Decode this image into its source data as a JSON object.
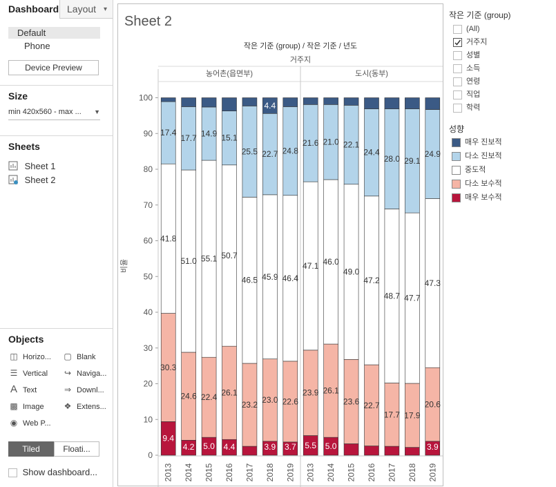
{
  "left_panel": {
    "tab_dashboard": "Dashboard",
    "tab_layout": "Layout",
    "device_default": "Default",
    "device_phone": "Phone",
    "device_preview_button": "Device Preview",
    "size_title": "Size",
    "size_value": "min 420x560 - max ...",
    "sheets_title": "Sheets",
    "sheets": [
      "Sheet 1",
      "Sheet 2"
    ],
    "objects_title": "Objects",
    "objects": [
      {
        "label": "Horizo...",
        "icon": "horizontal-icon"
      },
      {
        "label": "Blank",
        "icon": "blank-icon"
      },
      {
        "label": "Vertical",
        "icon": "vertical-icon"
      },
      {
        "label": "Naviga...",
        "icon": "navigation-icon"
      },
      {
        "label": "Text",
        "icon": "text-icon"
      },
      {
        "label": "Downl...",
        "icon": "download-icon"
      },
      {
        "label": "Image",
        "icon": "image-icon"
      },
      {
        "label": "Extens...",
        "icon": "extension-icon"
      },
      {
        "label": "Web P...",
        "icon": "web-page-icon"
      }
    ],
    "tiled": "Tiled",
    "floating": "Floati...",
    "show_dashboard": "Show dashboard..."
  },
  "sheet_title": "Sheet 2",
  "filter": {
    "title": "작은 기준 (group)",
    "items": [
      {
        "label": "(All)",
        "checked": false
      },
      {
        "label": "거주지",
        "checked": true
      },
      {
        "label": "성별",
        "checked": false
      },
      {
        "label": "소득",
        "checked": false
      },
      {
        "label": "연령",
        "checked": false
      },
      {
        "label": "직업",
        "checked": false
      },
      {
        "label": "학력",
        "checked": false
      }
    ]
  },
  "legend": {
    "title": "성향",
    "items": [
      {
        "label": "매우 진보적",
        "color": "#3b5a85"
      },
      {
        "label": "다소 진보적",
        "color": "#b3d4ea"
      },
      {
        "label": "중도적",
        "color": "#ffffff"
      },
      {
        "label": "다소 보수적",
        "color": "#f5b5a6"
      },
      {
        "label": "매우 보수적",
        "color": "#b8153c"
      }
    ]
  },
  "chart_data": {
    "type": "bar",
    "stacked": true,
    "header": "작은 기준 (group) / 작은 기준 / 년도",
    "group_header": "거주지",
    "ylabel": "비율",
    "ylim": [
      0,
      100
    ],
    "yticks": [
      0,
      10,
      20,
      30,
      40,
      50,
      60,
      70,
      80,
      90,
      100
    ],
    "panels": [
      {
        "name": "농어촌(읍면부)",
        "years": [
          "2013",
          "2014",
          "2015",
          "2016",
          "2017",
          "2018",
          "2019"
        ],
        "series": [
          {
            "name": "매우 보수적",
            "values": [
              9.4,
              4.2,
              5.0,
              4.4,
              2.5,
              3.9,
              3.7
            ],
            "labels": [
              "9.4",
              "4.2",
              "5.0",
              "4.4",
              "",
              "3.9",
              "3.7"
            ]
          },
          {
            "name": "다소 보수적",
            "values": [
              30.3,
              24.6,
              22.4,
              26.1,
              23.2,
              23.0,
              22.6
            ],
            "labels": [
              "30.3",
              "24.6",
              "22.4",
              "26.1",
              "23.2",
              "23.0",
              "22.6"
            ]
          },
          {
            "name": "중도적",
            "values": [
              41.8,
              51.0,
              55.1,
              50.7,
              46.5,
              45.9,
              46.4
            ],
            "labels": [
              "41.8",
              "51.0",
              "55.1",
              "50.7",
              "46.5",
              "45.9",
              "46.4"
            ]
          },
          {
            "name": "다소 진보적",
            "values": [
              17.4,
              17.7,
              14.9,
              15.1,
              25.5,
              22.7,
              24.8
            ],
            "labels": [
              "17.4",
              "17.7",
              "14.9",
              "15.1",
              "25.5",
              "22.7",
              "24.8"
            ]
          },
          {
            "name": "매우 진보적",
            "values": [
              1.1,
              2.5,
              2.6,
              3.7,
              2.3,
              4.4,
              2.5
            ],
            "labels": [
              "",
              "",
              "",
              "",
              "",
              "4.4",
              ""
            ]
          }
        ]
      },
      {
        "name": "도시(동부)",
        "years": [
          "2013",
          "2014",
          "2015",
          "2016",
          "2017",
          "2018",
          "2019"
        ],
        "series": [
          {
            "name": "매우 보수적",
            "values": [
              5.5,
              5.0,
              3.2,
              2.6,
              2.5,
              2.2,
              3.9
            ],
            "labels": [
              "5.5",
              "5.0",
              "",
              "",
              "",
              "",
              "3.9"
            ]
          },
          {
            "name": "다소 보수적",
            "values": [
              23.9,
              26.1,
              23.6,
              22.7,
              17.7,
              17.9,
              20.6
            ],
            "labels": [
              "23.9",
              "26.1",
              "23.6",
              "22.7",
              "17.7",
              "17.9",
              "20.6"
            ]
          },
          {
            "name": "중도적",
            "values": [
              47.1,
              46.0,
              49.0,
              47.2,
              48.7,
              47.7,
              47.3
            ],
            "labels": [
              "47.1",
              "46.0",
              "49.0",
              "47.2",
              "48.7",
              "47.7",
              "47.3"
            ]
          },
          {
            "name": "다소 진보적",
            "values": [
              21.6,
              21.0,
              22.1,
              24.4,
              28.0,
              29.1,
              24.9
            ],
            "labels": [
              "21.6",
              "21.0",
              "22.1",
              "24.4",
              "28.0",
              "29.1",
              "24.9"
            ]
          },
          {
            "name": "매우 진보적",
            "values": [
              1.9,
              1.9,
              2.1,
              3.1,
              3.1,
              3.1,
              3.3
            ],
            "labels": [
              "",
              "",
              "",
              "",
              "",
              "",
              ""
            ]
          }
        ]
      }
    ]
  }
}
